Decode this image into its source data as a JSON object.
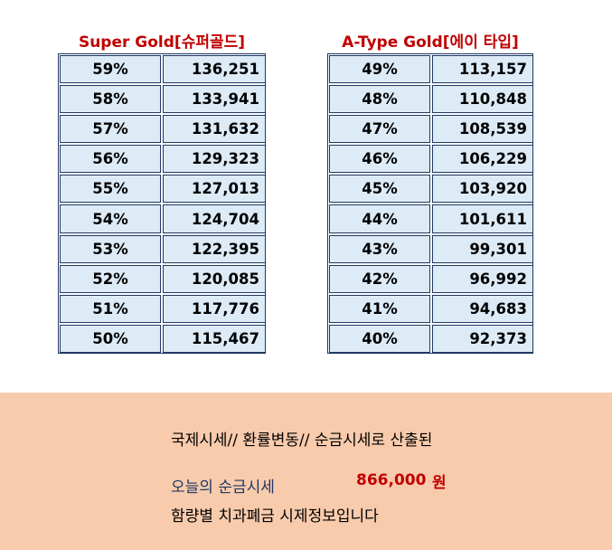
{
  "super_gold": {
    "title": "Super Gold[슈퍼골드]",
    "rows": [
      {
        "purity": "59%",
        "price": "136,251"
      },
      {
        "purity": "58%",
        "price": "133,941"
      },
      {
        "purity": "57%",
        "price": "131,632"
      },
      {
        "purity": "56%",
        "price": "129,323"
      },
      {
        "purity": "55%",
        "price": "127,013"
      },
      {
        "purity": "54%",
        "price": "124,704"
      },
      {
        "purity": "53%",
        "price": "122,395"
      },
      {
        "purity": "52%",
        "price": "120,085"
      },
      {
        "purity": "51%",
        "price": "117,776"
      },
      {
        "purity": "50%",
        "price": "115,467"
      }
    ]
  },
  "a_type_gold": {
    "title": "A-Type Gold[에이 타입]",
    "rows": [
      {
        "purity": "49%",
        "price": "113,157"
      },
      {
        "purity": "48%",
        "price": "110,848"
      },
      {
        "purity": "47%",
        "price": "108,539"
      },
      {
        "purity": "46%",
        "price": "106,229"
      },
      {
        "purity": "45%",
        "price": "103,920"
      },
      {
        "purity": "44%",
        "price": "101,611"
      },
      {
        "purity": "43%",
        "price": "99,301"
      },
      {
        "purity": "42%",
        "price": "96,992"
      },
      {
        "purity": "41%",
        "price": "94,683"
      },
      {
        "purity": "40%",
        "price": "92,373"
      }
    ]
  },
  "notice": {
    "line1": "국제시세// 환률변동// 순금시세로 산출된",
    "today_label": "오늘의 순금시세",
    "today_price": "866,000",
    "today_unit": "원",
    "line3": "함량별 치과폐금 시제정보입니다"
  },
  "colors": {
    "title_red": "#c00000",
    "cell_fill": "#ddebf7",
    "border_navy": "#1f3864",
    "panel_peach": "#f8cbad"
  }
}
